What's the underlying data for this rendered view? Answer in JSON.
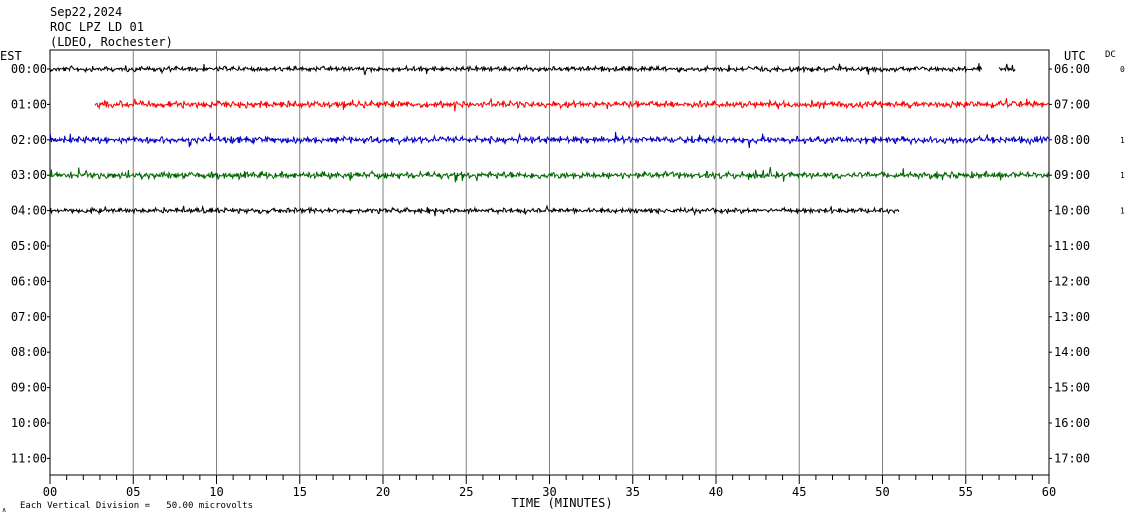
{
  "header": {
    "date": "Sep22,2024",
    "station": "ROC LPZ LD 01",
    "network": "(LDEO, Rochester)"
  },
  "left_zone_label": "EST",
  "right_zone_label": "UTC",
  "dc_label": "DC",
  "xlabel": "TIME (MINUTES)",
  "scale_note": "Each Vertical Division =   50.00 microvolts",
  "corner_mark": "∧",
  "colors": {
    "grid": "#808080",
    "axis": "#000000",
    "series": [
      "#000000",
      "#ff0000",
      "#0000c0",
      "#006400",
      "#000000"
    ]
  },
  "chart_data": {
    "type": "line",
    "title": "ROC LPZ LD 01",
    "xlabel": "TIME (MINUTES)",
    "xlim": [
      0,
      60
    ],
    "x_ticks": [
      "00",
      "05",
      "10",
      "15",
      "20",
      "25",
      "30",
      "35",
      "40",
      "45",
      "50",
      "55",
      "60"
    ],
    "left_rows": [
      "00:00",
      "01:00",
      "02:00",
      "03:00",
      "04:00",
      "05:00",
      "06:00",
      "07:00",
      "08:00",
      "09:00",
      "10:00",
      "11:00"
    ],
    "right_rows": [
      "06:00",
      "07:00",
      "08:00",
      "09:00",
      "10:00",
      "11:00",
      "12:00",
      "13:00",
      "14:00",
      "15:00",
      "16:00",
      "17:00"
    ],
    "dc_values": [
      "0",
      "",
      "1",
      "1",
      "1",
      "",
      "",
      "",
      "",
      "",
      "",
      ""
    ],
    "grid": true,
    "series": [
      {
        "row": 0,
        "start_min": 0,
        "end_min": 58,
        "gap": [
          56,
          57
        ],
        "amplitude": 3
      },
      {
        "row": 1,
        "start_min": 2.7,
        "end_min": 60,
        "amplitude": 4
      },
      {
        "row": 2,
        "start_min": 0,
        "end_min": 60,
        "amplitude": 4
      },
      {
        "row": 3,
        "start_min": 0,
        "end_min": 60,
        "amplitude": 4
      },
      {
        "row": 4,
        "start_min": 0,
        "end_min": 51,
        "amplitude": 3
      }
    ]
  }
}
